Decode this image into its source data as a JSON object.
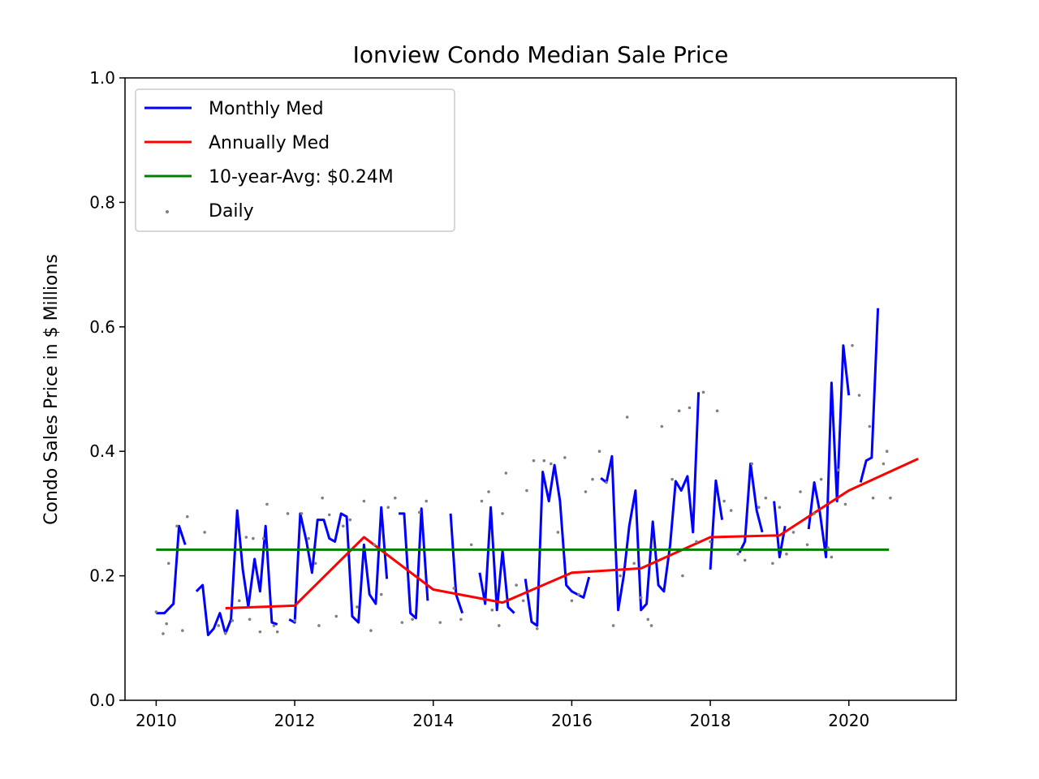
{
  "chart_data": {
    "type": "line",
    "title": "Ionview Condo Median Sale Price",
    "xlabel": "",
    "ylabel": "Condo Sales Price in $ Millions",
    "xlim": [
      2009.55,
      2021.55
    ],
    "ylim": [
      0.0,
      1.0
    ],
    "x_ticks": [
      2010,
      2012,
      2014,
      2016,
      2018,
      2020
    ],
    "x_tick_labels": [
      "2010",
      "2012",
      "2014",
      "2016",
      "2018",
      "2020"
    ],
    "y_ticks": [
      0.0,
      0.2,
      0.4,
      0.6,
      0.8,
      1.0
    ],
    "y_tick_labels": [
      "0.0",
      "0.2",
      "0.4",
      "0.6",
      "0.8",
      "1.0"
    ],
    "grid": false,
    "legend_position": "top-left",
    "series": [
      {
        "name": "Monthly Med",
        "kind": "line",
        "color": "#0000ff",
        "segments": [
          [
            [
              2010.0,
              0.14
            ],
            [
              2010.12,
              0.14
            ],
            [
              2010.25,
              0.155
            ],
            [
              2010.33,
              0.28
            ],
            [
              2010.42,
              0.25
            ]
          ],
          [
            [
              2010.58,
              0.175
            ],
            [
              2010.67,
              0.185
            ],
            [
              2010.75,
              0.105
            ],
            [
              2010.83,
              0.115
            ],
            [
              2010.92,
              0.14
            ],
            [
              2011.0,
              0.107
            ],
            [
              2011.08,
              0.13
            ],
            [
              2011.17,
              0.305
            ],
            [
              2011.25,
              0.21
            ],
            [
              2011.33,
              0.15
            ],
            [
              2011.42,
              0.227
            ],
            [
              2011.5,
              0.175
            ],
            [
              2011.58,
              0.28
            ],
            [
              2011.67,
              0.125
            ],
            [
              2011.75,
              0.122
            ]
          ],
          [
            [
              2011.92,
              0.13
            ],
            [
              2012.0,
              0.125
            ],
            [
              2012.08,
              0.3
            ],
            [
              2012.17,
              0.255
            ],
            [
              2012.25,
              0.205
            ],
            [
              2012.33,
              0.29
            ],
            [
              2012.42,
              0.29
            ],
            [
              2012.5,
              0.26
            ],
            [
              2012.58,
              0.255
            ],
            [
              2012.67,
              0.3
            ],
            [
              2012.75,
              0.295
            ],
            [
              2012.83,
              0.135
            ],
            [
              2012.92,
              0.125
            ],
            [
              2013.0,
              0.25
            ],
            [
              2013.08,
              0.17
            ],
            [
              2013.17,
              0.155
            ],
            [
              2013.25,
              0.31
            ],
            [
              2013.33,
              0.195
            ]
          ],
          [
            [
              2013.5,
              0.3
            ],
            [
              2013.58,
              0.3
            ],
            [
              2013.67,
              0.14
            ],
            [
              2013.75,
              0.132
            ],
            [
              2013.83,
              0.308
            ],
            [
              2013.92,
              0.16
            ]
          ],
          [
            [
              2014.25,
              0.3
            ],
            [
              2014.33,
              0.17
            ],
            [
              2014.42,
              0.14
            ]
          ],
          [
            [
              2014.67,
              0.205
            ],
            [
              2014.75,
              0.155
            ],
            [
              2014.83,
              0.31
            ],
            [
              2014.92,
              0.145
            ],
            [
              2015.0,
              0.24
            ],
            [
              2015.08,
              0.15
            ],
            [
              2015.17,
              0.14
            ]
          ],
          [
            [
              2015.33,
              0.195
            ],
            [
              2015.42,
              0.126
            ],
            [
              2015.5,
              0.12
            ],
            [
              2015.58,
              0.367
            ],
            [
              2015.67,
              0.32
            ],
            [
              2015.75,
              0.378
            ],
            [
              2015.83,
              0.32
            ],
            [
              2015.92,
              0.185
            ],
            [
              2016.0,
              0.175
            ],
            [
              2016.17,
              0.165
            ],
            [
              2016.25,
              0.198
            ]
          ],
          [
            [
              2016.42,
              0.357
            ],
            [
              2016.5,
              0.35
            ],
            [
              2016.58,
              0.392
            ],
            [
              2016.67,
              0.145
            ],
            [
              2016.75,
              0.2
            ],
            [
              2016.83,
              0.28
            ],
            [
              2016.92,
              0.337
            ],
            [
              2017.0,
              0.145
            ],
            [
              2017.08,
              0.155
            ],
            [
              2017.17,
              0.287
            ],
            [
              2017.25,
              0.185
            ],
            [
              2017.33,
              0.175
            ],
            [
              2017.42,
              0.25
            ],
            [
              2017.5,
              0.352
            ],
            [
              2017.58,
              0.337
            ],
            [
              2017.67,
              0.36
            ],
            [
              2017.75,
              0.27
            ],
            [
              2017.83,
              0.495
            ]
          ],
          [
            [
              2018.0,
              0.21
            ],
            [
              2018.08,
              0.353
            ],
            [
              2018.17,
              0.29
            ]
          ],
          [
            [
              2018.42,
              0.237
            ],
            [
              2018.5,
              0.255
            ],
            [
              2018.58,
              0.38
            ],
            [
              2018.67,
              0.305
            ],
            [
              2018.75,
              0.27
            ]
          ],
          [
            [
              2018.92,
              0.32
            ],
            [
              2019.0,
              0.23
            ],
            [
              2019.08,
              0.28
            ]
          ],
          [
            [
              2019.42,
              0.275
            ],
            [
              2019.5,
              0.35
            ],
            [
              2019.58,
              0.303
            ],
            [
              2019.67,
              0.23
            ],
            [
              2019.75,
              0.51
            ],
            [
              2019.83,
              0.32
            ],
            [
              2019.92,
              0.57
            ],
            [
              2020.0,
              0.49
            ]
          ],
          [
            [
              2020.17,
              0.35
            ],
            [
              2020.25,
              0.385
            ],
            [
              2020.33,
              0.39
            ],
            [
              2020.42,
              0.63
            ]
          ]
        ]
      },
      {
        "name": "Annually Med",
        "kind": "line",
        "color": "#ff0000",
        "x": [
          2011.0,
          2012.0,
          2013.0,
          2014.0,
          2015.0,
          2016.0,
          2017.0,
          2018.0,
          2019.0,
          2020.0,
          2021.0
        ],
        "y": [
          0.148,
          0.152,
          0.262,
          0.178,
          0.157,
          0.205,
          0.212,
          0.262,
          0.265,
          0.337,
          0.388
        ]
      },
      {
        "name": "10-year-Avg: $0.24M",
        "kind": "line",
        "color": "#008000",
        "x": [
          2010.0,
          2020.58
        ],
        "y": [
          0.242,
          0.242
        ]
      },
      {
        "name": "Daily",
        "kind": "scatter",
        "color": "#808080",
        "points": [
          [
            2010.0,
            0.142
          ],
          [
            2010.1,
            0.107
          ],
          [
            2010.15,
            0.123
          ],
          [
            2010.18,
            0.22
          ],
          [
            2010.3,
            0.28
          ],
          [
            2010.38,
            0.112
          ],
          [
            2010.45,
            0.295
          ],
          [
            2010.7,
            0.27
          ],
          [
            2010.9,
            0.12
          ],
          [
            2011.0,
            0.108
          ],
          [
            2011.1,
            0.128
          ],
          [
            2011.2,
            0.16
          ],
          [
            2011.3,
            0.262
          ],
          [
            2011.35,
            0.13
          ],
          [
            2011.4,
            0.26
          ],
          [
            2011.5,
            0.11
          ],
          [
            2011.55,
            0.26
          ],
          [
            2011.6,
            0.315
          ],
          [
            2011.7,
            0.12
          ],
          [
            2011.75,
            0.11
          ],
          [
            2011.9,
            0.3
          ],
          [
            2012.0,
            0.128
          ],
          [
            2012.1,
            0.3
          ],
          [
            2012.2,
            0.26
          ],
          [
            2012.3,
            0.22
          ],
          [
            2012.35,
            0.12
          ],
          [
            2012.4,
            0.325
          ],
          [
            2012.5,
            0.298
          ],
          [
            2012.6,
            0.135
          ],
          [
            2012.7,
            0.28
          ],
          [
            2012.8,
            0.29
          ],
          [
            2012.9,
            0.15
          ],
          [
            2013.0,
            0.32
          ],
          [
            2013.1,
            0.112
          ],
          [
            2013.15,
            0.25
          ],
          [
            2013.25,
            0.17
          ],
          [
            2013.35,
            0.31
          ],
          [
            2013.45,
            0.325
          ],
          [
            2013.55,
            0.125
          ],
          [
            2013.7,
            0.13
          ],
          [
            2013.8,
            0.302
          ],
          [
            2013.9,
            0.32
          ],
          [
            2014.1,
            0.125
          ],
          [
            2014.3,
            0.18
          ],
          [
            2014.4,
            0.13
          ],
          [
            2014.55,
            0.25
          ],
          [
            2014.7,
            0.32
          ],
          [
            2014.8,
            0.335
          ],
          [
            2014.85,
            0.145
          ],
          [
            2014.95,
            0.12
          ],
          [
            2015.0,
            0.3
          ],
          [
            2015.05,
            0.365
          ],
          [
            2015.2,
            0.185
          ],
          [
            2015.3,
            0.16
          ],
          [
            2015.35,
            0.337
          ],
          [
            2015.45,
            0.385
          ],
          [
            2015.5,
            0.115
          ],
          [
            2015.6,
            0.385
          ],
          [
            2015.7,
            0.38
          ],
          [
            2015.8,
            0.27
          ],
          [
            2015.9,
            0.39
          ],
          [
            2016.0,
            0.16
          ],
          [
            2016.1,
            0.17
          ],
          [
            2016.2,
            0.335
          ],
          [
            2016.3,
            0.355
          ],
          [
            2016.4,
            0.4
          ],
          [
            2016.5,
            0.35
          ],
          [
            2016.6,
            0.12
          ],
          [
            2016.7,
            0.2
          ],
          [
            2016.8,
            0.455
          ],
          [
            2016.9,
            0.22
          ],
          [
            2017.0,
            0.165
          ],
          [
            2017.1,
            0.13
          ],
          [
            2017.15,
            0.12
          ],
          [
            2017.3,
            0.44
          ],
          [
            2017.45,
            0.355
          ],
          [
            2017.55,
            0.465
          ],
          [
            2017.6,
            0.2
          ],
          [
            2017.7,
            0.47
          ],
          [
            2017.8,
            0.255
          ],
          [
            2017.9,
            0.495
          ],
          [
            2018.0,
            0.255
          ],
          [
            2018.1,
            0.465
          ],
          [
            2018.2,
            0.32
          ],
          [
            2018.3,
            0.305
          ],
          [
            2018.4,
            0.235
          ],
          [
            2018.5,
            0.225
          ],
          [
            2018.6,
            0.38
          ],
          [
            2018.7,
            0.31
          ],
          [
            2018.8,
            0.325
          ],
          [
            2018.9,
            0.22
          ],
          [
            2019.0,
            0.31
          ],
          [
            2019.1,
            0.235
          ],
          [
            2019.2,
            0.27
          ],
          [
            2019.3,
            0.335
          ],
          [
            2019.4,
            0.25
          ],
          [
            2019.5,
            0.3
          ],
          [
            2019.6,
            0.355
          ],
          [
            2019.7,
            0.245
          ],
          [
            2019.75,
            0.23
          ],
          [
            2019.85,
            0.37
          ],
          [
            2019.95,
            0.315
          ],
          [
            2020.05,
            0.57
          ],
          [
            2020.15,
            0.49
          ],
          [
            2020.3,
            0.44
          ],
          [
            2020.35,
            0.325
          ],
          [
            2020.5,
            0.38
          ],
          [
            2020.55,
            0.4
          ],
          [
            2020.6,
            0.325
          ]
        ]
      }
    ]
  }
}
